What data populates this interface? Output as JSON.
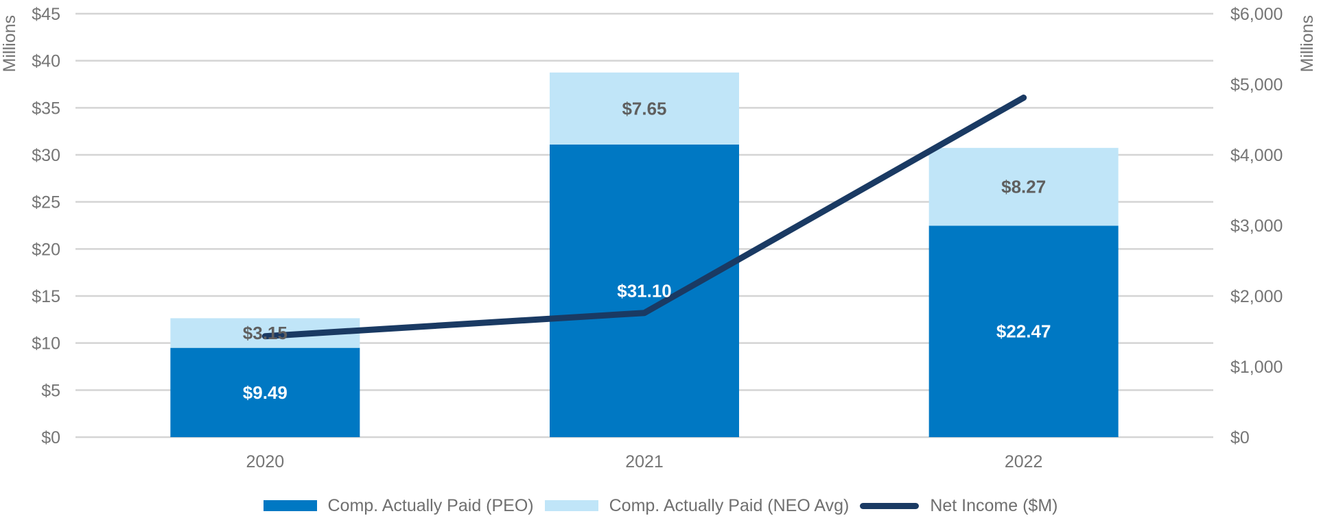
{
  "chart_data": {
    "type": "bar",
    "stacked": true,
    "categories": [
      "2020",
      "2021",
      "2022"
    ],
    "series": [
      {
        "name": "Comp. Actually Paid (PEO)",
        "kind": "bar",
        "axis": "left",
        "color": "#0078C3",
        "label_color": "#ffffff",
        "values": [
          9.49,
          31.1,
          22.47
        ],
        "labels": [
          "$9.49",
          "$31.10",
          "$22.47"
        ]
      },
      {
        "name": "Comp. Actually Paid (NEO Avg)",
        "kind": "bar",
        "axis": "left",
        "color": "#C0E5F8",
        "label_color": "#5f5f5f",
        "values": [
          3.15,
          7.65,
          8.27
        ],
        "labels": [
          "$3.15",
          "$7.65",
          "$8.27"
        ]
      },
      {
        "name": "Net Income ($M)",
        "kind": "line",
        "axis": "right",
        "color": "#1A3A63",
        "values": [
          1430,
          1760,
          4810
        ]
      }
    ],
    "y_left": {
      "min": 0,
      "max": 45,
      "step": 5,
      "unit_label": "Millions",
      "tick_labels": [
        "$0",
        "$5",
        "$10",
        "$15",
        "$20",
        "$25",
        "$30",
        "$35",
        "$40",
        "$45"
      ]
    },
    "y_right": {
      "min": 0,
      "max": 6000,
      "step": 1000,
      "unit_label": "Millions",
      "tick_labels": [
        "$0",
        "$1,000",
        "$2,000",
        "$3,000",
        "$4,000",
        "$5,000",
        "$6,000"
      ]
    },
    "grid": true,
    "legend_position": "bottom"
  },
  "legend": {
    "items": [
      {
        "label": "Comp. Actually Paid (PEO)",
        "color": "#0078C3",
        "kind": "bar"
      },
      {
        "label": "Comp. Actually Paid (NEO Avg)",
        "color": "#C0E5F8",
        "kind": "bar"
      },
      {
        "label": "Net Income ($M)",
        "color": "#1A3A63",
        "kind": "line"
      }
    ]
  }
}
